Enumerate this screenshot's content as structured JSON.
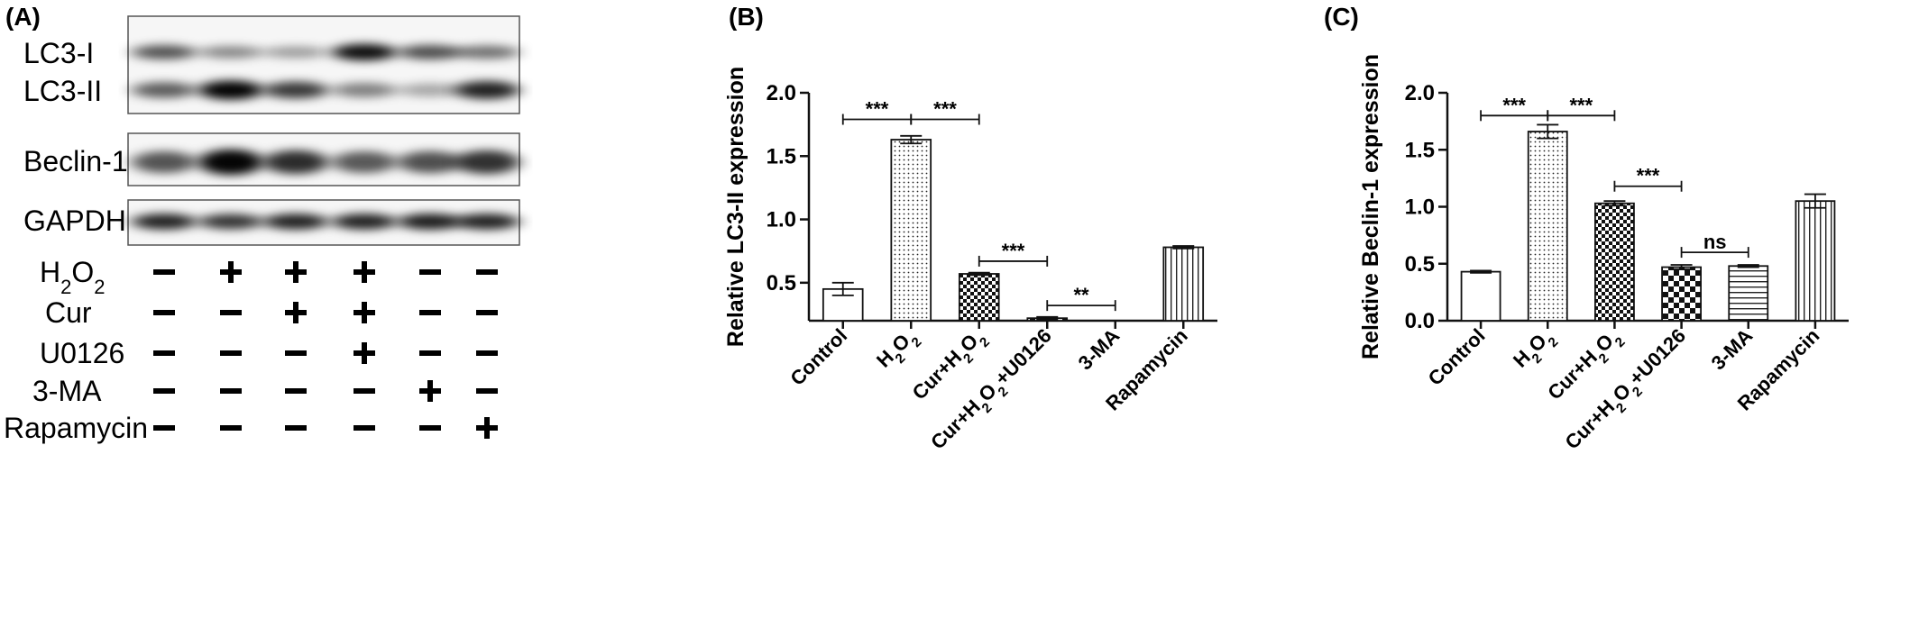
{
  "panels": {
    "a": {
      "label": "(A)",
      "blots": [
        {
          "name": "lc3",
          "labels": [
            "LC3-I",
            "LC3-II"
          ]
        },
        {
          "name": "beclin",
          "labels": [
            "Beclin-1"
          ]
        },
        {
          "name": "gapdh",
          "labels": [
            "GAPDH"
          ]
        }
      ],
      "band_intensity": {
        "lc3_i": [
          0.6,
          0.32,
          0.22,
          0.95,
          0.62,
          0.45
        ],
        "lc3_ii": [
          0.55,
          1.0,
          0.72,
          0.38,
          0.18,
          0.85
        ],
        "beclin_1": [
          0.6,
          1.0,
          0.8,
          0.58,
          0.62,
          0.78
        ],
        "gapdh": [
          0.85,
          0.75,
          0.85,
          0.85,
          0.88,
          0.85
        ]
      },
      "treatment_rows": [
        {
          "name": "H2O2",
          "label": "H",
          "sub1": "2",
          "mid": "O",
          "sub2": "2",
          "signs": [
            "-",
            "+",
            "+",
            "+",
            "-",
            "-"
          ]
        },
        {
          "name": "Cur",
          "label": "Cur",
          "signs": [
            "-",
            "-",
            "+",
            "+",
            "-",
            "-"
          ]
        },
        {
          "name": "U0126",
          "label": "U0126",
          "signs": [
            "-",
            "-",
            "-",
            "+",
            "-",
            "-"
          ]
        },
        {
          "name": "3-MA",
          "label": "3-MA",
          "signs": [
            "-",
            "-",
            "-",
            "-",
            "+",
            "-"
          ]
        },
        {
          "name": "Rapamycin",
          "label": "Rapamycin",
          "signs": [
            "-",
            "-",
            "-",
            "-",
            "-",
            "+"
          ]
        }
      ]
    },
    "b": {
      "label": "(B)"
    },
    "c": {
      "label": "(C)"
    }
  },
  "chart_data": [
    {
      "type": "bar",
      "panel": "(B)",
      "ylabel": "Relative LC3-II expression",
      "categories": [
        "Control",
        "H2O2",
        "Cur+H2O2",
        "Cur+H2O2+U0126",
        "3-MA",
        "Rapamycin"
      ],
      "category_parts": [
        [
          {
            "t": "Control"
          }
        ],
        [
          {
            "t": "H"
          },
          {
            "t": "2",
            "sub": true
          },
          {
            "t": "O"
          },
          {
            "t": "2",
            "sub": true
          }
        ],
        [
          {
            "t": "Cur+H"
          },
          {
            "t": "2",
            "sub": true
          },
          {
            "t": "O"
          },
          {
            "t": "2",
            "sub": true
          }
        ],
        [
          {
            "t": "Cur+H"
          },
          {
            "t": "2",
            "sub": true
          },
          {
            "t": "O"
          },
          {
            "t": "2",
            "sub": true
          },
          {
            "t": "+U0126"
          }
        ],
        [
          {
            "t": "3-MA"
          }
        ],
        [
          {
            "t": "Rapamycin"
          }
        ]
      ],
      "values": [
        0.45,
        1.63,
        0.57,
        0.22,
        0.0,
        0.78
      ],
      "errors": [
        0.05,
        0.03,
        0.01,
        0.01,
        0.0,
        0.01
      ],
      "patterns": [
        "white",
        "dots",
        "checker-small",
        "checker-large",
        "white",
        "vstripes"
      ],
      "ylim": [
        0.2,
        2.0
      ],
      "yticks": [
        0.5,
        1.0,
        1.5,
        2.0
      ],
      "ytick_labels": [
        "0.5",
        "1.0",
        "1.5",
        "2.0"
      ],
      "significance": [
        {
          "from": 0,
          "to": 1,
          "y": 1.79,
          "label": "***"
        },
        {
          "from": 1,
          "to": 2,
          "y": 1.79,
          "label": "***"
        },
        {
          "from": 2,
          "to": 3,
          "y": 0.67,
          "label": "***"
        },
        {
          "from": 3,
          "to": 4,
          "y": 0.32,
          "label": "**"
        }
      ]
    },
    {
      "type": "bar",
      "panel": "(C)",
      "ylabel": "Relative Beclin-1 expression",
      "categories": [
        "Control",
        "H2O2",
        "Cur+H2O2",
        "Cur+H2O2+U0126",
        "3-MA",
        "Rapamycin"
      ],
      "category_parts": [
        [
          {
            "t": "Control"
          }
        ],
        [
          {
            "t": "H"
          },
          {
            "t": "2",
            "sub": true
          },
          {
            "t": "O"
          },
          {
            "t": "2",
            "sub": true
          }
        ],
        [
          {
            "t": "Cur+H"
          },
          {
            "t": "2",
            "sub": true
          },
          {
            "t": "O"
          },
          {
            "t": "2",
            "sub": true
          }
        ],
        [
          {
            "t": "Cur+H"
          },
          {
            "t": "2",
            "sub": true
          },
          {
            "t": "O"
          },
          {
            "t": "2",
            "sub": true
          },
          {
            "t": "+U0126"
          }
        ],
        [
          {
            "t": "3-MA"
          }
        ],
        [
          {
            "t": "Rapamycin"
          }
        ]
      ],
      "values": [
        0.43,
        1.66,
        1.03,
        0.47,
        0.48,
        1.05
      ],
      "errors": [
        0.01,
        0.06,
        0.02,
        0.02,
        0.01,
        0.06
      ],
      "patterns": [
        "white",
        "dots",
        "checker-small",
        "checker-large",
        "hstripes",
        "vstripes"
      ],
      "ylim": [
        0.0,
        2.0
      ],
      "yticks": [
        0.0,
        0.5,
        1.0,
        1.5,
        2.0
      ],
      "ytick_labels": [
        "0.0",
        "0.5",
        "1.0",
        "1.5",
        "2.0"
      ],
      "significance": [
        {
          "from": 0,
          "to": 1,
          "y": 1.8,
          "label": "***"
        },
        {
          "from": 1,
          "to": 2,
          "y": 1.8,
          "label": "***"
        },
        {
          "from": 2,
          "to": 3,
          "y": 1.18,
          "label": "***"
        },
        {
          "from": 3,
          "to": 4,
          "y": 0.6,
          "label": "ns"
        }
      ]
    }
  ]
}
